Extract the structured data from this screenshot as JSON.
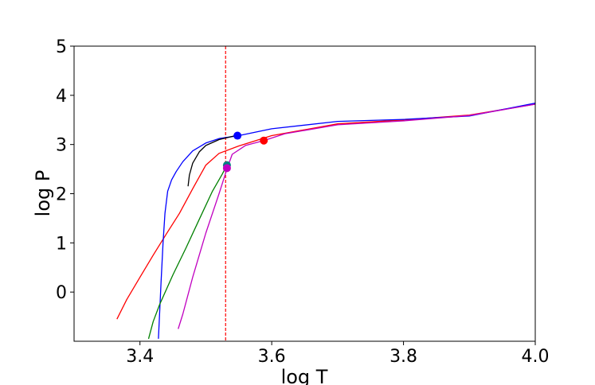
{
  "chart_data": {
    "type": "line",
    "title": "",
    "xlabel": "log T",
    "ylabel": "log P",
    "xlim": [
      3.3,
      4.0
    ],
    "ylim": [
      -1.0,
      5.0
    ],
    "xticks": [
      3.4,
      3.6,
      3.8,
      4.0
    ],
    "xtick_labels": [
      "3.4",
      "3.6",
      "3.8",
      "4.0"
    ],
    "yticks": [
      0,
      1,
      2,
      3,
      4,
      5
    ],
    "ytick_labels": [
      "0",
      "1",
      "2",
      "3",
      "4",
      "5"
    ],
    "grid": false,
    "legend": "none",
    "vline": {
      "x": 3.53,
      "color": "#ff0000",
      "style": "dashed"
    },
    "series": [
      {
        "color": "#ff0000",
        "x": [
          3.365,
          3.38,
          3.4,
          3.42,
          3.44,
          3.46,
          3.48,
          3.5,
          3.52,
          3.55,
          3.6,
          3.7,
          3.8,
          3.9,
          4.0
        ],
        "y": [
          -0.55,
          -0.15,
          0.3,
          0.75,
          1.18,
          1.6,
          2.1,
          2.58,
          2.82,
          2.97,
          3.18,
          3.42,
          3.5,
          3.6,
          3.82
        ]
      },
      {
        "color": "#0000ff",
        "x": [
          3.428,
          3.432,
          3.435,
          3.438,
          3.442,
          3.448,
          3.455,
          3.465,
          3.48,
          3.5,
          3.52,
          3.55,
          3.6,
          3.7,
          3.8,
          3.9,
          4.0
        ],
        "y": [
          -0.95,
          0.2,
          1.0,
          1.6,
          2.05,
          2.28,
          2.45,
          2.65,
          2.87,
          3.03,
          3.12,
          3.18,
          3.32,
          3.47,
          3.51,
          3.58,
          3.84
        ]
      },
      {
        "color": "#000000",
        "x": [
          3.473,
          3.475,
          3.48,
          3.49,
          3.5,
          3.52,
          3.545
        ],
        "y": [
          2.15,
          2.38,
          2.62,
          2.85,
          2.98,
          3.1,
          3.18
        ]
      },
      {
        "color": "#008000",
        "x": [
          3.413,
          3.42,
          3.43,
          3.45,
          3.47,
          3.49,
          3.51,
          3.525,
          3.532
        ],
        "y": [
          -0.95,
          -0.6,
          -0.25,
          0.35,
          0.9,
          1.48,
          2.05,
          2.4,
          2.58
        ]
      },
      {
        "color": "#c000c0",
        "x": [
          3.458,
          3.465,
          3.48,
          3.5,
          3.52,
          3.532,
          3.54,
          3.56,
          3.588,
          3.62,
          3.7,
          3.8,
          3.9,
          4.0
        ],
        "y": [
          -0.75,
          -0.45,
          0.3,
          1.2,
          2.0,
          2.5,
          2.8,
          2.98,
          3.08,
          3.22,
          3.4,
          3.48,
          3.59,
          3.82
        ]
      }
    ],
    "markers": [
      {
        "x": 3.548,
        "y": 3.18,
        "color": "#0000ff"
      },
      {
        "x": 3.588,
        "y": 3.08,
        "color": "#ff0000"
      },
      {
        "x": 3.532,
        "y": 2.58,
        "color": "#008080"
      },
      {
        "x": 3.532,
        "y": 2.52,
        "color": "#c000c0"
      }
    ]
  }
}
